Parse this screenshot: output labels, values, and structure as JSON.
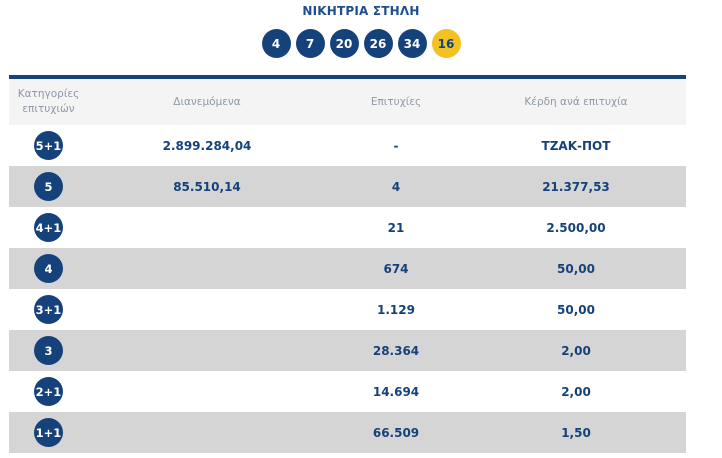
{
  "title": "ΝΙΚΗΤΡΙΑ ΣΤΗΛΗ",
  "numbers": [
    "4",
    "7",
    "20",
    "26",
    "34"
  ],
  "joker": "16",
  "colors": {
    "primary": "#15427a",
    "joker": "#f2c122",
    "row_alt": "#d5d5d5"
  },
  "headers": {
    "category_line1": "Κατηγορίες",
    "category_line2": "επιτυχιών",
    "distributed": "Διανεμόμενα",
    "winners": "Επιτυχίες",
    "prize": "Κέρδη ανά επιτυχία"
  },
  "rows": [
    {
      "category": "5+1",
      "distributed": "2.899.284,04",
      "winners": "-",
      "prize": "ΤΖΑΚ-ΠΟΤ"
    },
    {
      "category": "5",
      "distributed": "85.510,14",
      "winners": "4",
      "prize": "21.377,53"
    },
    {
      "category": "4+1",
      "distributed": "",
      "winners": "21",
      "prize": "2.500,00"
    },
    {
      "category": "4",
      "distributed": "",
      "winners": "674",
      "prize": "50,00"
    },
    {
      "category": "3+1",
      "distributed": "",
      "winners": "1.129",
      "prize": "50,00"
    },
    {
      "category": "3",
      "distributed": "",
      "winners": "28.364",
      "prize": "2,00"
    },
    {
      "category": "2+1",
      "distributed": "",
      "winners": "14.694",
      "prize": "2,00"
    },
    {
      "category": "1+1",
      "distributed": "",
      "winners": "66.509",
      "prize": "1,50"
    }
  ]
}
